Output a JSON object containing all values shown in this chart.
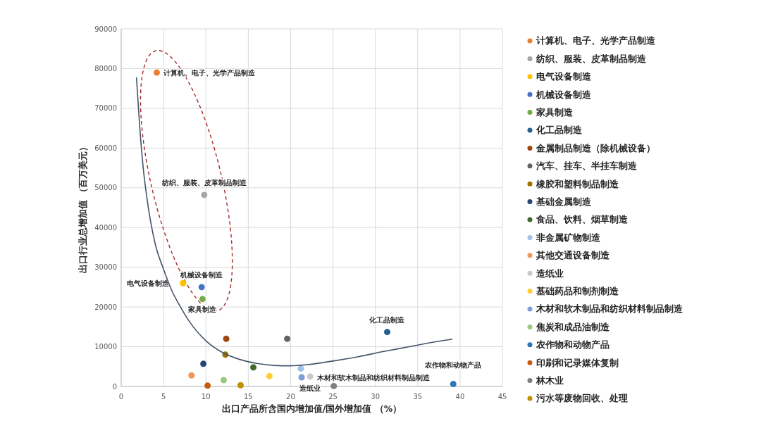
{
  "chart_data": {
    "type": "scatter",
    "xlabel": "出口产品所含国内增加值/国外增加值 （%）",
    "ylabel": "出口行业总增加值 （百万美元）",
    "xlim": [
      0,
      45
    ],
    "xticks": [
      0,
      5,
      10,
      15,
      20,
      25,
      30,
      35,
      40,
      45
    ],
    "ylim": [
      0,
      90000
    ],
    "yticks": [
      0,
      10000,
      20000,
      30000,
      40000,
      50000,
      60000,
      70000,
      80000,
      90000
    ],
    "grid": true,
    "legend": "right",
    "marker": "circle",
    "series": [
      {
        "name": "计算机、电子、光学产品制造",
        "color": "#ed7d31",
        "x": [
          4.2
        ],
        "values": [
          79000
        ]
      },
      {
        "name": "纺织、服装、皮革制品制造",
        "color": "#a5a5a5",
        "x": [
          9.8
        ],
        "values": [
          48200
        ]
      },
      {
        "name": "电气设备制造",
        "color": "#ffc000",
        "x": [
          7.3
        ],
        "values": [
          26000
        ]
      },
      {
        "name": "机械设备制造",
        "color": "#4472c4",
        "x": [
          9.5
        ],
        "values": [
          25000
        ]
      },
      {
        "name": "家具制造",
        "color": "#70ad47",
        "x": [
          9.6
        ],
        "values": [
          22000
        ]
      },
      {
        "name": "化工品制造",
        "color": "#255e91",
        "x": [
          31.4
        ],
        "values": [
          13700
        ]
      },
      {
        "name": "金属制品制造（除机械设备）",
        "color": "#9e480e",
        "x": [
          12.4
        ],
        "values": [
          12000
        ]
      },
      {
        "name": "汽车、挂车、半挂车制造",
        "color": "#636363",
        "x": [
          19.6
        ],
        "values": [
          12000
        ]
      },
      {
        "name": "橡胶和塑料制品制造",
        "color": "#997300",
        "x": [
          12.3
        ],
        "values": [
          8000
        ]
      },
      {
        "name": "基础金属制造",
        "color": "#264478",
        "x": [
          9.7
        ],
        "values": [
          5700
        ]
      },
      {
        "name": "食品、饮料、烟草制造",
        "color": "#43682b",
        "x": [
          15.6
        ],
        "values": [
          4800
        ]
      },
      {
        "name": "非金属矿物制造",
        "color": "#9dc3e6",
        "x": [
          21.2
        ],
        "values": [
          4500
        ]
      },
      {
        "name": "其他交通设备制造",
        "color": "#f1975a",
        "x": [
          8.3
        ],
        "values": [
          2800
        ]
      },
      {
        "name": "造纸业",
        "color": "#c9c9c9",
        "x": [
          22.3
        ],
        "values": [
          2500
        ]
      },
      {
        "name": "基础药品和制剂制造",
        "color": "#ffcd33",
        "x": [
          17.5
        ],
        "values": [
          2600
        ]
      },
      {
        "name": "木材和软木制品和纺织材料制品制造",
        "color": "#7f9ddb",
        "x": [
          21.3
        ],
        "values": [
          2300
        ]
      },
      {
        "name": "焦炭和成品油制造",
        "color": "#9bc77f",
        "x": [
          12.1
        ],
        "values": [
          1600
        ]
      },
      {
        "name": "农作物和动物产品",
        "color": "#2e75b6",
        "x": [
          39.2
        ],
        "values": [
          600
        ]
      },
      {
        "name": "印刷和记录媒体复制",
        "color": "#c55a11",
        "x": [
          10.2
        ],
        "values": [
          200
        ]
      },
      {
        "name": "林木业",
        "color": "#7f7f7f",
        "x": [
          25.1
        ],
        "values": [
          100
        ]
      },
      {
        "name": "污水等废物回收、处理",
        "color": "#bf9000",
        "x": [
          14.1
        ],
        "values": [
          300
        ]
      },
      {
        "type": "line",
        "marker": "none",
        "color": "#44546a",
        "x": [
          1.8,
          2.2,
          2.6,
          3,
          4,
          5,
          6,
          7,
          8,
          10,
          12,
          14,
          16,
          18,
          20,
          22,
          25,
          28,
          31,
          34,
          37,
          39.1
        ],
        "values": [
          77800,
          65000,
          55000,
          48000,
          36000,
          29500,
          24000,
          20000,
          16500,
          11500,
          8500,
          6800,
          5800,
          5300,
          5200,
          5500,
          6400,
          7500,
          8800,
          10000,
          11200,
          11900
        ]
      }
    ],
    "annotations": [
      {
        "text": "计算机、电子、光学产品制造",
        "x": 4.2,
        "y": 79000
      },
      {
        "text": "纺织、服装、皮革制品制造",
        "x": 9.8,
        "y": 48200
      },
      {
        "text": "电气设备制造",
        "x": 7.3,
        "y": 26000
      },
      {
        "text": "机械设备制造",
        "x": 9.5,
        "y": 25000
      },
      {
        "text": "家具制造",
        "x": 9.6,
        "y": 22000
      },
      {
        "text": "化工品制造",
        "x": 31.4,
        "y": 13700
      },
      {
        "text": "木材和软木制品和纺织材料制品制造",
        "x": 21.3,
        "y": 2300
      },
      {
        "text": "造纸业",
        "x": 22.3,
        "y": 2500
      },
      {
        "text": "农作物和动物产品",
        "x": 39.2,
        "y": 600
      }
    ]
  }
}
